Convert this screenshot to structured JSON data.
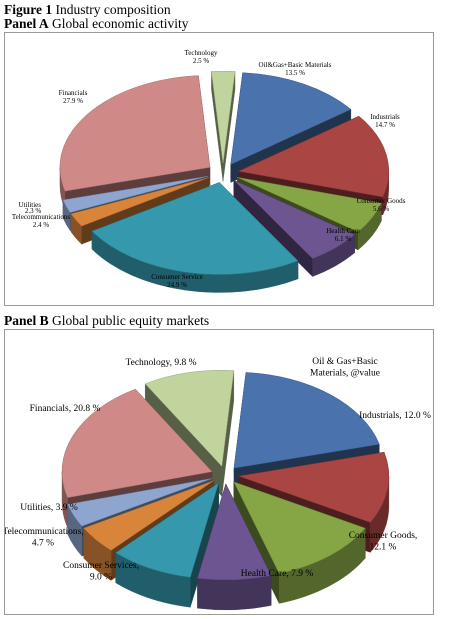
{
  "figure": {
    "label": "Figure 1",
    "title": "Industry composition"
  },
  "panels": [
    {
      "label": "Panel A",
      "title": "Global economic activity"
    },
    {
      "label": "Panel B",
      "title": "Global public equity markets"
    }
  ],
  "chart_data": [
    {
      "type": "pie",
      "title": "Panel A Global economic activity",
      "slices": [
        {
          "name": "Oil&Gas+Basic Materials",
          "value": 13.5,
          "label": "13.5 %",
          "color": "#4a73ad"
        },
        {
          "name": "Industrials",
          "value": 14.7,
          "label": "14.7 %",
          "color": "#a94543"
        },
        {
          "name": "Consumer Goods",
          "value": 5.6,
          "label": "5.6 %",
          "color": "#86a545"
        },
        {
          "name": "Health Care",
          "value": 6.1,
          "label": "6.1 %",
          "color": "#6c5590"
        },
        {
          "name": "Consumer Service",
          "value": 24.9,
          "label": "24.9 %",
          "color": "#3598ad"
        },
        {
          "name": "Telecommunications",
          "value": 2.4,
          "label": "2.4 %",
          "color": "#d9843b"
        },
        {
          "name": "Utilities",
          "value": 2.3,
          "label": "2.3 %",
          "color": "#8ea5cf"
        },
        {
          "name": "Financials",
          "value": 27.9,
          "label": "27.9 %",
          "color": "#cf8a88"
        },
        {
          "name": "Technology",
          "value": 2.5,
          "label": "2.5 %",
          "color": "#c1d49d"
        }
      ]
    },
    {
      "type": "pie",
      "title": "Panel B Global public equity markets",
      "slices": [
        {
          "name": "Oil & Gas+Basic Materials",
          "value": 19.7,
          "label": "19.7 %",
          "color": "#4a73ad"
        },
        {
          "name": "Industrials",
          "value": 12.0,
          "label": "12.0 %",
          "color": "#a94543"
        },
        {
          "name": "Consumer Goods",
          "value": 12.1,
          "label": "12.1 %",
          "color": "#86a545"
        },
        {
          "name": "Health Care",
          "value": 7.9,
          "label": "7.9 %",
          "color": "#6c5590"
        },
        {
          "name": "Consumer Services",
          "value": 9.0,
          "label": "9.0 %",
          "color": "#3598ad"
        },
        {
          "name": "Telecommunications",
          "value": 4.7,
          "label": "4.7 %",
          "color": "#d9843b"
        },
        {
          "name": "Utilities",
          "value": 3.9,
          "label": "3.9 %",
          "color": "#8ea5cf"
        },
        {
          "name": "Financials",
          "value": 20.8,
          "label": "20.8 %",
          "color": "#cf8a88"
        },
        {
          "name": "Technology",
          "value": 9.8,
          "label": "9.8 %",
          "color": "#c1d49d"
        }
      ]
    }
  ]
}
